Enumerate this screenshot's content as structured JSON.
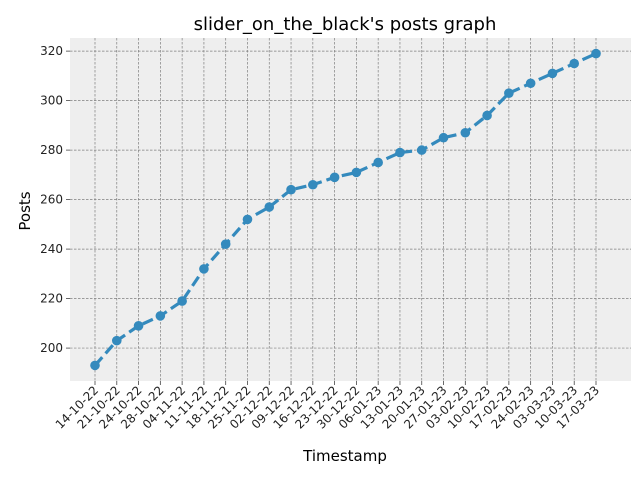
{
  "chart_data": {
    "type": "line",
    "title": "slider_on_the_black's posts graph",
    "xlabel": "Timestamp",
    "ylabel": "Posts",
    "x": [
      "14-10-22",
      "21-10-22",
      "24-10-22",
      "28-10-22",
      "04-11-22",
      "11-11-22",
      "18-11-22",
      "25-11-22",
      "02-12-22",
      "09-12-22",
      "16-12-22",
      "23-12-22",
      "30-12-22",
      "06-01-23",
      "13-01-23",
      "20-01-23",
      "27-01-23",
      "03-02-23",
      "10-02-23",
      "17-02-23",
      "24-02-23",
      "03-03-23",
      "10-03-23",
      "17-03-23"
    ],
    "series": [
      {
        "values": [
          193,
          203,
          209,
          213,
          219,
          232,
          242,
          252,
          257,
          264,
          266,
          269,
          271,
          275,
          279,
          280,
          285,
          287,
          294,
          303,
          307,
          311,
          315,
          319
        ]
      }
    ],
    "yticks": [
      200,
      220,
      240,
      260,
      280,
      300,
      320
    ],
    "ylim": [
      186.7,
      325.3
    ],
    "grid": true,
    "colors": {
      "series": "#348abd",
      "plot_background": "#eeeeee",
      "grid": "#7f7f7f"
    }
  }
}
